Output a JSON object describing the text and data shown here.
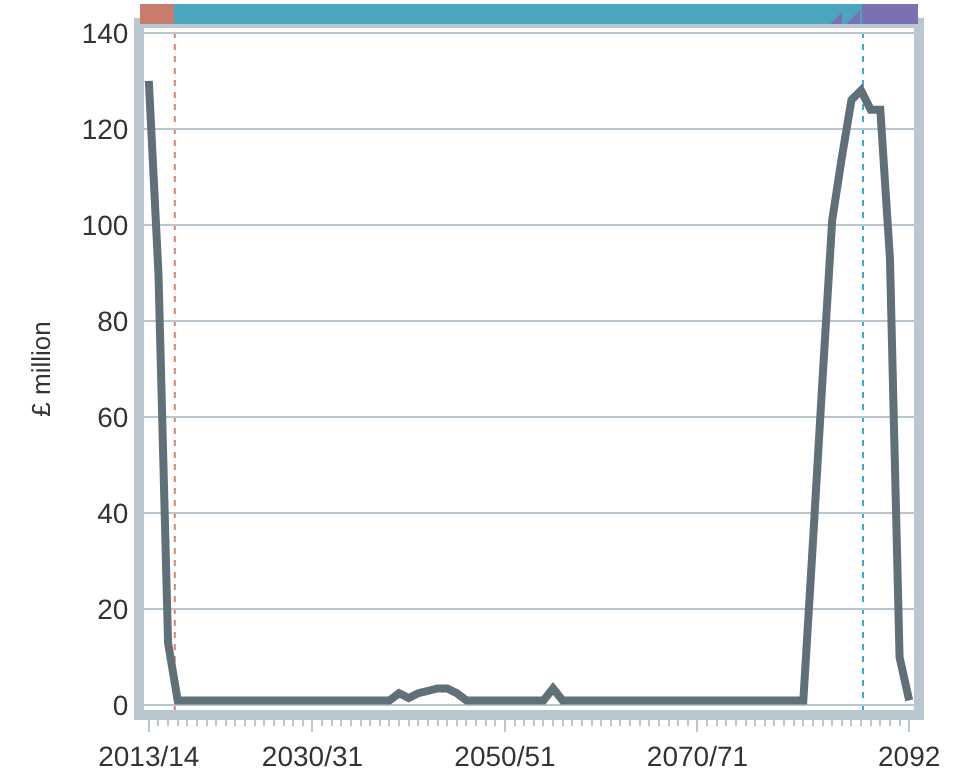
{
  "chart_data": {
    "type": "line",
    "ylabel": "£ million",
    "categories": [
      "2013/14",
      null,
      null,
      null,
      null,
      null,
      null,
      null,
      null,
      null,
      null,
      null,
      null,
      null,
      null,
      null,
      null,
      "2030/31",
      null,
      null,
      null,
      null,
      null,
      null,
      null,
      null,
      null,
      null,
      null,
      null,
      null,
      null,
      null,
      null,
      null,
      null,
      null,
      "2050/51",
      null,
      null,
      null,
      null,
      null,
      null,
      null,
      null,
      null,
      null,
      null,
      null,
      null,
      null,
      null,
      null,
      null,
      null,
      null,
      "2070/71",
      null,
      null,
      null,
      null,
      null,
      null,
      null,
      null,
      null,
      null,
      null,
      null,
      null,
      null,
      null,
      null,
      null,
      null,
      null,
      null,
      null,
      "2092"
    ],
    "series": [
      {
        "color": "#5f7079",
        "values": [
          130,
          90,
          13,
          1,
          1,
          1,
          1,
          1,
          1,
          1,
          1,
          1,
          1,
          1,
          1,
          1,
          1,
          1,
          1,
          1,
          1,
          1,
          1,
          1,
          1,
          1,
          2.5,
          1.5,
          2.5,
          3,
          3.5,
          3.5,
          2.5,
          1,
          1,
          1,
          1,
          1,
          1,
          1,
          1,
          1,
          3.5,
          1,
          1,
          1,
          1,
          1,
          1,
          1,
          1,
          1,
          1,
          1,
          1,
          1,
          1,
          1,
          1,
          1,
          1,
          1,
          1,
          1,
          1,
          1,
          1,
          1,
          1,
          34,
          68,
          101,
          114,
          126,
          128,
          124,
          124,
          93,
          10,
          1
        ]
      }
    ],
    "ylim": [
      -1,
      141
    ],
    "yticks": [
      0,
      20,
      40,
      60,
      80,
      100,
      120,
      140
    ],
    "grid": "y",
    "marker": "none",
    "line_style": "solid"
  }
}
